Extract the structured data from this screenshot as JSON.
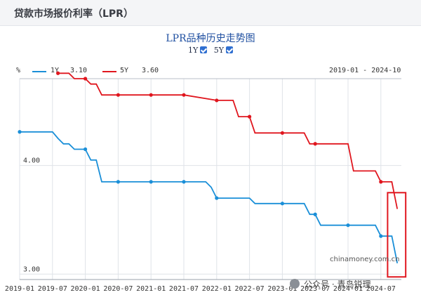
{
  "header": {
    "title": "贷款市场报价利率（LPR）"
  },
  "chart_title": "LPR品种历史走势图",
  "toggles": [
    {
      "label": "1Y",
      "checked": true
    },
    {
      "label": "5Y",
      "checked": true
    }
  ],
  "legend": {
    "unit": "%",
    "series": [
      {
        "label": "1Y",
        "value": "3.10",
        "color": "#1a8fd8"
      },
      {
        "label": "5Y",
        "value": "3.60",
        "color": "#e0161e"
      }
    ],
    "range": "2019-01 - 2024-10"
  },
  "watermark": "chinamoney.com.cn",
  "social_credit": "公众号 · 青岛锐理",
  "chart_data": {
    "type": "line",
    "title": "LPR品种历史走势图",
    "ylabel": "%",
    "y_ticks": [
      "4.00",
      "3.00"
    ],
    "ylim": [
      2.95,
      4.8
    ],
    "x_ticks": [
      "2019-01",
      "2019-07",
      "2020-01",
      "2020-07",
      "2021-01",
      "2021-07",
      "2022-01",
      "2022-07",
      "2023-01",
      "2023-07",
      "2024-01",
      "2024-07"
    ],
    "x_range": [
      "2019-01",
      "2024-10"
    ],
    "grid": true,
    "series": [
      {
        "name": "1Y",
        "color": "#1a8fd8",
        "points": [
          [
            "2019-01",
            4.31
          ],
          [
            "2019-07",
            4.31
          ],
          [
            "2019-08",
            4.25
          ],
          [
            "2019-09",
            4.2
          ],
          [
            "2019-10",
            4.2
          ],
          [
            "2019-11",
            4.15
          ],
          [
            "2020-01",
            4.15
          ],
          [
            "2020-02",
            4.05
          ],
          [
            "2020-03",
            4.05
          ],
          [
            "2020-04",
            3.85
          ],
          [
            "2020-07",
            3.85
          ],
          [
            "2021-01",
            3.85
          ],
          [
            "2021-07",
            3.85
          ],
          [
            "2021-11",
            3.85
          ],
          [
            "2021-12",
            3.8
          ],
          [
            "2022-01",
            3.7
          ],
          [
            "2022-07",
            3.7
          ],
          [
            "2022-08",
            3.65
          ],
          [
            "2023-01",
            3.65
          ],
          [
            "2023-05",
            3.65
          ],
          [
            "2023-06",
            3.55
          ],
          [
            "2023-07",
            3.55
          ],
          [
            "2023-08",
            3.45
          ],
          [
            "2024-01",
            3.45
          ],
          [
            "2024-06",
            3.45
          ],
          [
            "2024-07",
            3.35
          ],
          [
            "2024-09",
            3.35
          ],
          [
            "2024-10",
            3.1
          ]
        ]
      },
      {
        "name": "5Y",
        "color": "#e0161e",
        "points": [
          [
            "2019-08",
            4.85
          ],
          [
            "2019-10",
            4.85
          ],
          [
            "2019-11",
            4.8
          ],
          [
            "2020-01",
            4.8
          ],
          [
            "2020-02",
            4.75
          ],
          [
            "2020-03",
            4.75
          ],
          [
            "2020-04",
            4.65
          ],
          [
            "2020-07",
            4.65
          ],
          [
            "2021-01",
            4.65
          ],
          [
            "2021-07",
            4.65
          ],
          [
            "2022-01",
            4.6
          ],
          [
            "2022-04",
            4.6
          ],
          [
            "2022-05",
            4.45
          ],
          [
            "2022-07",
            4.45
          ],
          [
            "2022-08",
            4.3
          ],
          [
            "2023-01",
            4.3
          ],
          [
            "2023-05",
            4.3
          ],
          [
            "2023-06",
            4.2
          ],
          [
            "2024-01",
            4.2
          ],
          [
            "2024-02",
            3.95
          ],
          [
            "2024-06",
            3.95
          ],
          [
            "2024-07",
            3.85
          ],
          [
            "2024-09",
            3.85
          ],
          [
            "2024-10",
            3.6
          ]
        ],
        "markers": [
          [
            "2019-08",
            4.85
          ],
          [
            "2020-01",
            4.8
          ],
          [
            "2020-07",
            4.65
          ],
          [
            "2021-01",
            4.65
          ],
          [
            "2021-07",
            4.65
          ],
          [
            "2022-01",
            4.6
          ],
          [
            "2022-07",
            4.45
          ],
          [
            "2023-01",
            4.3
          ],
          [
            "2023-07",
            4.2
          ],
          [
            "2024-07",
            3.85
          ]
        ]
      }
    ],
    "markers_1y": [
      [
        "2019-01",
        4.31
      ],
      [
        "2020-01",
        4.15
      ],
      [
        "2020-07",
        3.85
      ],
      [
        "2021-01",
        3.85
      ],
      [
        "2021-07",
        3.85
      ],
      [
        "2022-01",
        3.7
      ],
      [
        "2023-01",
        3.65
      ],
      [
        "2023-07",
        3.55
      ],
      [
        "2024-01",
        3.45
      ],
      [
        "2024-07",
        3.35
      ]
    ],
    "highlight": {
      "color": "#e0161e",
      "x_range": [
        "2024-09",
        "2024-10"
      ],
      "y_range": [
        3.0,
        3.75
      ]
    }
  }
}
